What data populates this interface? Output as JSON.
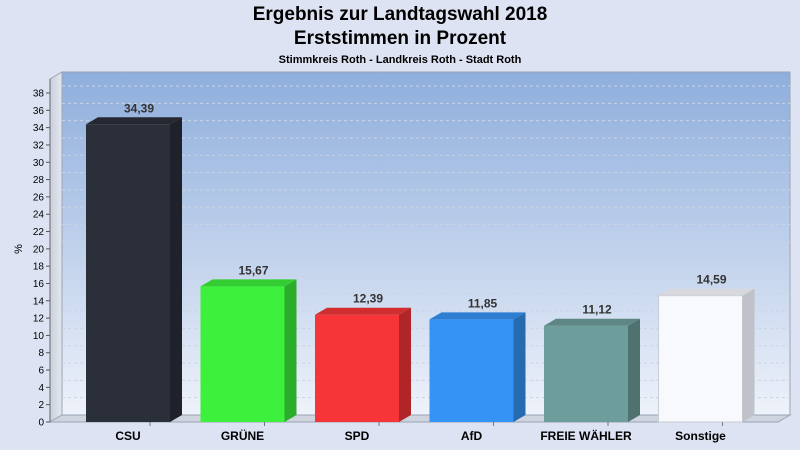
{
  "chart_data": {
    "type": "bar",
    "title": "Ergebnis zur Landtagswahl 2018",
    "subtitle": "Erststimmen in Prozent",
    "subsubtitle": "Stimmkreis Roth - Landkreis Roth - Stadt Roth",
    "ylabel": "%",
    "ylim": [
      0,
      38
    ],
    "yticks": [
      0,
      2,
      4,
      6,
      8,
      10,
      12,
      14,
      16,
      18,
      20,
      22,
      24,
      26,
      28,
      30,
      32,
      34,
      36,
      38
    ],
    "grid": true,
    "categories": [
      "CSU",
      "GRÜNE",
      "SPD",
      "AfD",
      "FREIE WÄHLER",
      "Sonstige"
    ],
    "values": [
      34.39,
      15.67,
      12.39,
      11.85,
      11.12,
      14.59
    ],
    "value_labels": [
      "34,39",
      "15,67",
      "12,39",
      "11,85",
      "11,12",
      "14,59"
    ],
    "colors": [
      "#2b2f3a",
      "#3cf03c",
      "#f53538",
      "#3593f5",
      "#6e9e9c",
      "#f8f9fc"
    ]
  }
}
